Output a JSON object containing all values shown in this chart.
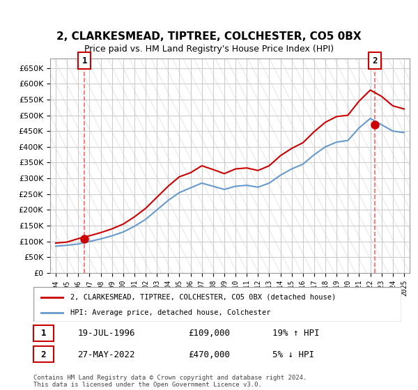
{
  "title": "2, CLARKESMEAD, TIPTREE, COLCHESTER, CO5 0BX",
  "subtitle": "Price paid vs. HM Land Registry's House Price Index (HPI)",
  "legend_line1": "2, CLARKESMEAD, TIPTREE, COLCHESTER, CO5 0BX (detached house)",
  "legend_line2": "HPI: Average price, detached house, Colchester",
  "annotation1_label": "1",
  "annotation1_date": "19-JUL-1996",
  "annotation1_price": "£109,000",
  "annotation1_hpi": "19% ↑ HPI",
  "annotation2_label": "2",
  "annotation2_date": "27-MAY-2022",
  "annotation2_price": "£470,000",
  "annotation2_hpi": "5% ↓ HPI",
  "footer": "Contains HM Land Registry data © Crown copyright and database right 2024.\nThis data is licensed under the Open Government Licence v3.0.",
  "hpi_color": "#6699cc",
  "price_color": "#cc0000",
  "marker_color": "#cc0000",
  "dashed_color": "#ff6666",
  "background_color": "#ffffff",
  "plot_bg_color": "#ffffff",
  "grid_color": "#cccccc",
  "hatch_color": "#dddddd",
  "ylim": [
    0,
    680000
  ],
  "yticks": [
    0,
    50000,
    100000,
    150000,
    200000,
    250000,
    300000,
    350000,
    400000,
    450000,
    500000,
    550000,
    600000,
    650000
  ],
  "hpi_years": [
    1994,
    1995,
    1996,
    1997,
    1998,
    1999,
    2000,
    2001,
    2002,
    2003,
    2004,
    2005,
    2006,
    2007,
    2008,
    2009,
    2010,
    2011,
    2012,
    2013,
    2014,
    2015,
    2016,
    2017,
    2018,
    2019,
    2020,
    2021,
    2022,
    2023,
    2024,
    2025
  ],
  "hpi_values": [
    85000,
    88000,
    92000,
    100000,
    108000,
    118000,
    130000,
    148000,
    170000,
    200000,
    230000,
    255000,
    270000,
    285000,
    275000,
    265000,
    275000,
    278000,
    272000,
    285000,
    310000,
    330000,
    345000,
    375000,
    400000,
    415000,
    420000,
    460000,
    490000,
    470000,
    450000,
    445000
  ],
  "price_years": [
    1994,
    1995,
    1996,
    1997,
    1998,
    1999,
    2000,
    2001,
    2002,
    2003,
    2004,
    2005,
    2006,
    2007,
    2008,
    2009,
    2010,
    2011,
    2012,
    2013,
    2014,
    2015,
    2016,
    2017,
    2018,
    2019,
    2020,
    2021,
    2022,
    2023,
    2024,
    2025
  ],
  "price_values": [
    95000,
    98000,
    109000,
    118000,
    128000,
    140000,
    155000,
    178000,
    205000,
    240000,
    275000,
    305000,
    318000,
    340000,
    328000,
    315000,
    330000,
    333000,
    325000,
    340000,
    372000,
    395000,
    413000,
    448000,
    478000,
    496000,
    500000,
    545000,
    580000,
    560000,
    530000,
    520000
  ],
  "sale1_year": 1996.55,
  "sale1_value": 109000,
  "sale2_year": 2022.41,
  "sale2_value": 470000,
  "xtick_years": [
    1994,
    1995,
    1996,
    1997,
    1998,
    1999,
    2000,
    2001,
    2002,
    2003,
    2004,
    2005,
    2006,
    2007,
    2008,
    2009,
    2010,
    2011,
    2012,
    2013,
    2014,
    2015,
    2016,
    2017,
    2018,
    2019,
    2020,
    2021,
    2022,
    2023,
    2024,
    2025
  ],
  "xlim": [
    1993.5,
    2025.5
  ]
}
